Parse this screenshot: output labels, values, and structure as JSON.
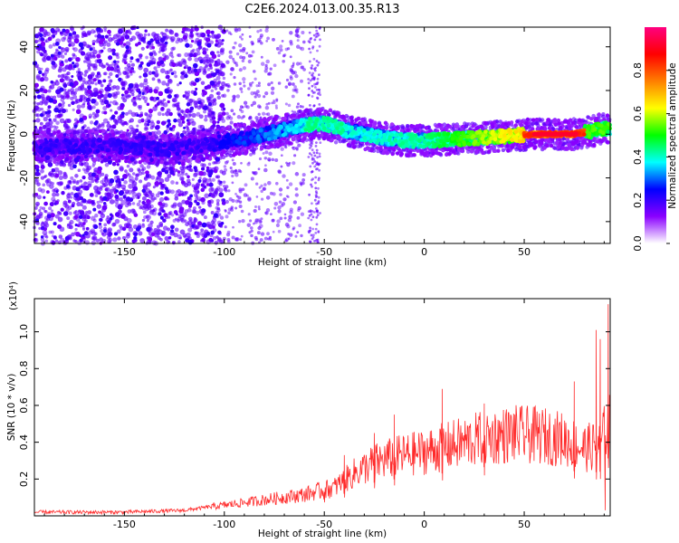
{
  "figure": {
    "title": "C2E6.2024.013.00.35.R13"
  },
  "chart_data": [
    {
      "type": "heatmap",
      "xlabel": "Height of straight line (km)",
      "ylabel": "Frequency (Hz)",
      "xlim": [
        -195,
        93
      ],
      "ylim": [
        -50,
        49
      ],
      "x_ticks": [
        -150,
        -100,
        -50,
        0,
        50
      ],
      "y_ticks": [
        -40,
        -20,
        0,
        20,
        40
      ],
      "grid": false,
      "colorbar": {
        "label": "Normalized spectral amplitude",
        "range": [
          0,
          1
        ],
        "ticks": [
          0.0,
          0.2,
          0.4,
          0.6,
          0.8
        ],
        "colormap": [
          "#ffffff",
          "#8a00ff",
          "#0000ff",
          "#00ffff",
          "#00ff00",
          "#ffff00",
          "#ff7f00",
          "#ff0000",
          "#ff0080"
        ]
      },
      "ridge": {
        "description_points": [
          {
            "x": -190,
            "y": -6
          },
          {
            "x": -160,
            "y": -5
          },
          {
            "x": -130,
            "y": -7
          },
          {
            "x": -110,
            "y": -5
          },
          {
            "x": -90,
            "y": -2
          },
          {
            "x": -75,
            "y": 1
          },
          {
            "x": -60,
            "y": 4
          },
          {
            "x": -50,
            "y": 5
          },
          {
            "x": -40,
            "y": 2
          },
          {
            "x": -25,
            "y": -1
          },
          {
            "x": -10,
            "y": -3
          },
          {
            "x": 0,
            "y": -3
          },
          {
            "x": 20,
            "y": -2
          },
          {
            "x": 40,
            "y": -1
          },
          {
            "x": 55,
            "y": 0
          },
          {
            "x": 75,
            "y": 0
          },
          {
            "x": 93,
            "y": 3
          }
        ]
      }
    },
    {
      "type": "line",
      "xlabel": "Height of straight line (km)",
      "ylabel": "SNR (10 * v/v)",
      "y_multiplier_label": "(x10⁴)",
      "xlim": [
        -195,
        93
      ],
      "ylim": [
        0,
        1.18
      ],
      "x_ticks": [
        -150,
        -100,
        -50,
        0,
        50
      ],
      "y_ticks": [
        0.2,
        0.4,
        0.6,
        0.8,
        1.0
      ],
      "line_color": "#ff2a2a",
      "grid": false,
      "series": [
        {
          "envelope": [
            {
              "x": -195,
              "y": 0.02
            },
            {
              "x": -150,
              "y": 0.02
            },
            {
              "x": -120,
              "y": 0.03
            },
            {
              "x": -100,
              "y": 0.06
            },
            {
              "x": -80,
              "y": 0.09
            },
            {
              "x": -60,
              "y": 0.12
            },
            {
              "x": -45,
              "y": 0.16
            },
            {
              "x": -35,
              "y": 0.24
            },
            {
              "x": -25,
              "y": 0.3
            },
            {
              "x": -15,
              "y": 0.33
            },
            {
              "x": 0,
              "y": 0.36
            },
            {
              "x": 15,
              "y": 0.4
            },
            {
              "x": 30,
              "y": 0.44
            },
            {
              "x": 45,
              "y": 0.46
            },
            {
              "x": 60,
              "y": 0.45
            },
            {
              "x": 70,
              "y": 0.43
            },
            {
              "x": 80,
              "y": 0.38
            },
            {
              "x": 88,
              "y": 0.4
            },
            {
              "x": 93,
              "y": 0.55
            }
          ],
          "peaks": [
            {
              "x": -50,
              "y": 0.13
            },
            {
              "x": -40,
              "y": 0.33
            },
            {
              "x": -25,
              "y": 0.45
            },
            {
              "x": -15,
              "y": 0.55
            },
            {
              "x": 9,
              "y": 0.69
            },
            {
              "x": 30,
              "y": 0.61
            },
            {
              "x": 75,
              "y": 0.73
            },
            {
              "x": 86,
              "y": 1.01
            },
            {
              "x": 88,
              "y": 0.96
            },
            {
              "x": 92,
              "y": 1.15
            }
          ]
        }
      ]
    }
  ]
}
